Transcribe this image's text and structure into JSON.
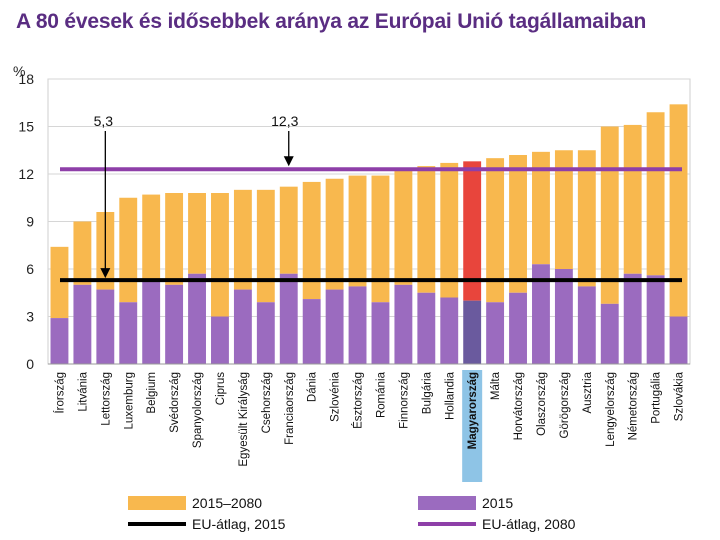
{
  "header": {
    "title": "A 80 évesek és idősebbek aránya az Európai Unió tagállamaiban"
  },
  "chart_data": {
    "type": "bar",
    "stacked": true,
    "title": "A 80 évesek és idősebbek aránya az Európai Unió tagállamaiban",
    "ylabel": "%",
    "ylim": [
      0,
      18
    ],
    "yticks": [
      0,
      3,
      6,
      9,
      12,
      15,
      18
    ],
    "grid": true,
    "highlight": "Magyarország",
    "categories": [
      "Írország",
      "Litvánia",
      "Lettország",
      "Luxemburg",
      "Belgium",
      "Svédország",
      "Spanyolország",
      "Ciprus",
      "Egyesült Királyság",
      "Csehország",
      "Franciaország",
      "Dánia",
      "Szlovénia",
      "Észtország",
      "Románia",
      "Finnország",
      "Bulgária",
      "Hollandia",
      "Magyarország",
      "Málta",
      "Horvátország",
      "Olaszország",
      "Görögország",
      "Ausztria",
      "Lengyelország",
      "Németország",
      "Portugália",
      "Szlovákia"
    ],
    "series": [
      {
        "name": "2015",
        "color": "#9b6bbf",
        "highlight_color": "#6a5a9e",
        "values": [
          2.9,
          5.0,
          4.7,
          3.9,
          5.2,
          5.0,
          5.7,
          3.0,
          4.7,
          3.9,
          5.7,
          4.1,
          4.7,
          4.9,
          3.9,
          5.0,
          4.5,
          4.2,
          4.0,
          3.9,
          4.5,
          6.3,
          6.0,
          4.9,
          3.8,
          5.7,
          5.6,
          3.0
        ]
      },
      {
        "name": "2015–2080",
        "color": "#f8b84e",
        "highlight_color": "#e8453c",
        "totals": [
          7.4,
          9.0,
          9.6,
          10.5,
          10.7,
          10.8,
          10.8,
          10.8,
          11.0,
          11.0,
          11.2,
          11.5,
          11.7,
          11.9,
          11.9,
          12.2,
          12.5,
          12.7,
          12.8,
          13.0,
          13.2,
          13.4,
          13.5,
          13.5,
          15.0,
          15.1,
          15.9,
          16.4
        ]
      }
    ],
    "reference_lines": [
      {
        "name": "EU-átlag, 2015",
        "value": 5.3,
        "color": "#000000",
        "annotation": "5,3"
      },
      {
        "name": "EU-átlag, 2080",
        "value": 12.3,
        "color": "#8e3fa8",
        "annotation": "12,3"
      }
    ],
    "legend": {
      "position": "bottom",
      "items": [
        {
          "label": "2015–2080",
          "color": "#f8b84e",
          "kind": "bar"
        },
        {
          "label": "2015",
          "color": "#9b6bbf",
          "kind": "bar"
        },
        {
          "label": "EU-átlag, 2015",
          "color": "#000000",
          "kind": "line"
        },
        {
          "label": "EU-átlag, 2080",
          "color": "#8e3fa8",
          "kind": "line"
        }
      ]
    }
  }
}
